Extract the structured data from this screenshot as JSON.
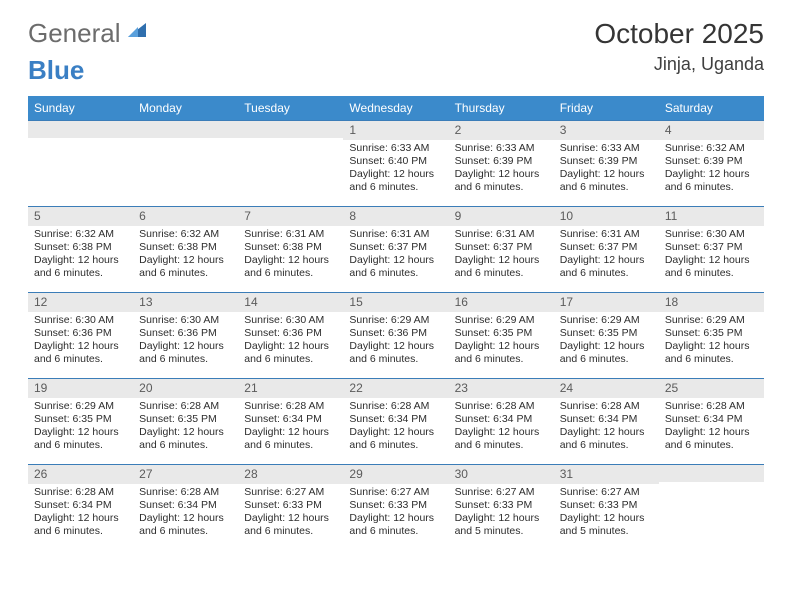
{
  "brand": {
    "part1": "General",
    "part2": "Blue"
  },
  "title": "October 2025",
  "location": "Jinja, Uganda",
  "colors": {
    "header_bg": "#3b8acb",
    "header_text": "#ffffff",
    "row_divider": "#3b7db8",
    "daynum_bg": "#e9e9e9",
    "text": "#2d2d2d",
    "brand_gray": "#6c6c6c",
    "brand_blue": "#3a7fc4"
  },
  "weekdays": [
    "Sunday",
    "Monday",
    "Tuesday",
    "Wednesday",
    "Thursday",
    "Friday",
    "Saturday"
  ],
  "first_weekday_index": 3,
  "days_in_month": 31,
  "days": [
    {
      "n": 1,
      "sunrise": "6:33 AM",
      "sunset": "6:40 PM",
      "daylight": "12 hours and 6 minutes."
    },
    {
      "n": 2,
      "sunrise": "6:33 AM",
      "sunset": "6:39 PM",
      "daylight": "12 hours and 6 minutes."
    },
    {
      "n": 3,
      "sunrise": "6:33 AM",
      "sunset": "6:39 PM",
      "daylight": "12 hours and 6 minutes."
    },
    {
      "n": 4,
      "sunrise": "6:32 AM",
      "sunset": "6:39 PM",
      "daylight": "12 hours and 6 minutes."
    },
    {
      "n": 5,
      "sunrise": "6:32 AM",
      "sunset": "6:38 PM",
      "daylight": "12 hours and 6 minutes."
    },
    {
      "n": 6,
      "sunrise": "6:32 AM",
      "sunset": "6:38 PM",
      "daylight": "12 hours and 6 minutes."
    },
    {
      "n": 7,
      "sunrise": "6:31 AM",
      "sunset": "6:38 PM",
      "daylight": "12 hours and 6 minutes."
    },
    {
      "n": 8,
      "sunrise": "6:31 AM",
      "sunset": "6:37 PM",
      "daylight": "12 hours and 6 minutes."
    },
    {
      "n": 9,
      "sunrise": "6:31 AM",
      "sunset": "6:37 PM",
      "daylight": "12 hours and 6 minutes."
    },
    {
      "n": 10,
      "sunrise": "6:31 AM",
      "sunset": "6:37 PM",
      "daylight": "12 hours and 6 minutes."
    },
    {
      "n": 11,
      "sunrise": "6:30 AM",
      "sunset": "6:37 PM",
      "daylight": "12 hours and 6 minutes."
    },
    {
      "n": 12,
      "sunrise": "6:30 AM",
      "sunset": "6:36 PM",
      "daylight": "12 hours and 6 minutes."
    },
    {
      "n": 13,
      "sunrise": "6:30 AM",
      "sunset": "6:36 PM",
      "daylight": "12 hours and 6 minutes."
    },
    {
      "n": 14,
      "sunrise": "6:30 AM",
      "sunset": "6:36 PM",
      "daylight": "12 hours and 6 minutes."
    },
    {
      "n": 15,
      "sunrise": "6:29 AM",
      "sunset": "6:36 PM",
      "daylight": "12 hours and 6 minutes."
    },
    {
      "n": 16,
      "sunrise": "6:29 AM",
      "sunset": "6:35 PM",
      "daylight": "12 hours and 6 minutes."
    },
    {
      "n": 17,
      "sunrise": "6:29 AM",
      "sunset": "6:35 PM",
      "daylight": "12 hours and 6 minutes."
    },
    {
      "n": 18,
      "sunrise": "6:29 AM",
      "sunset": "6:35 PM",
      "daylight": "12 hours and 6 minutes."
    },
    {
      "n": 19,
      "sunrise": "6:29 AM",
      "sunset": "6:35 PM",
      "daylight": "12 hours and 6 minutes."
    },
    {
      "n": 20,
      "sunrise": "6:28 AM",
      "sunset": "6:35 PM",
      "daylight": "12 hours and 6 minutes."
    },
    {
      "n": 21,
      "sunrise": "6:28 AM",
      "sunset": "6:34 PM",
      "daylight": "12 hours and 6 minutes."
    },
    {
      "n": 22,
      "sunrise": "6:28 AM",
      "sunset": "6:34 PM",
      "daylight": "12 hours and 6 minutes."
    },
    {
      "n": 23,
      "sunrise": "6:28 AM",
      "sunset": "6:34 PM",
      "daylight": "12 hours and 6 minutes."
    },
    {
      "n": 24,
      "sunrise": "6:28 AM",
      "sunset": "6:34 PM",
      "daylight": "12 hours and 6 minutes."
    },
    {
      "n": 25,
      "sunrise": "6:28 AM",
      "sunset": "6:34 PM",
      "daylight": "12 hours and 6 minutes."
    },
    {
      "n": 26,
      "sunrise": "6:28 AM",
      "sunset": "6:34 PM",
      "daylight": "12 hours and 6 minutes."
    },
    {
      "n": 27,
      "sunrise": "6:28 AM",
      "sunset": "6:34 PM",
      "daylight": "12 hours and 6 minutes."
    },
    {
      "n": 28,
      "sunrise": "6:27 AM",
      "sunset": "6:33 PM",
      "daylight": "12 hours and 6 minutes."
    },
    {
      "n": 29,
      "sunrise": "6:27 AM",
      "sunset": "6:33 PM",
      "daylight": "12 hours and 6 minutes."
    },
    {
      "n": 30,
      "sunrise": "6:27 AM",
      "sunset": "6:33 PM",
      "daylight": "12 hours and 5 minutes."
    },
    {
      "n": 31,
      "sunrise": "6:27 AM",
      "sunset": "6:33 PM",
      "daylight": "12 hours and 5 minutes."
    }
  ],
  "labels": {
    "sunrise": "Sunrise:",
    "sunset": "Sunset:",
    "daylight": "Daylight:"
  }
}
